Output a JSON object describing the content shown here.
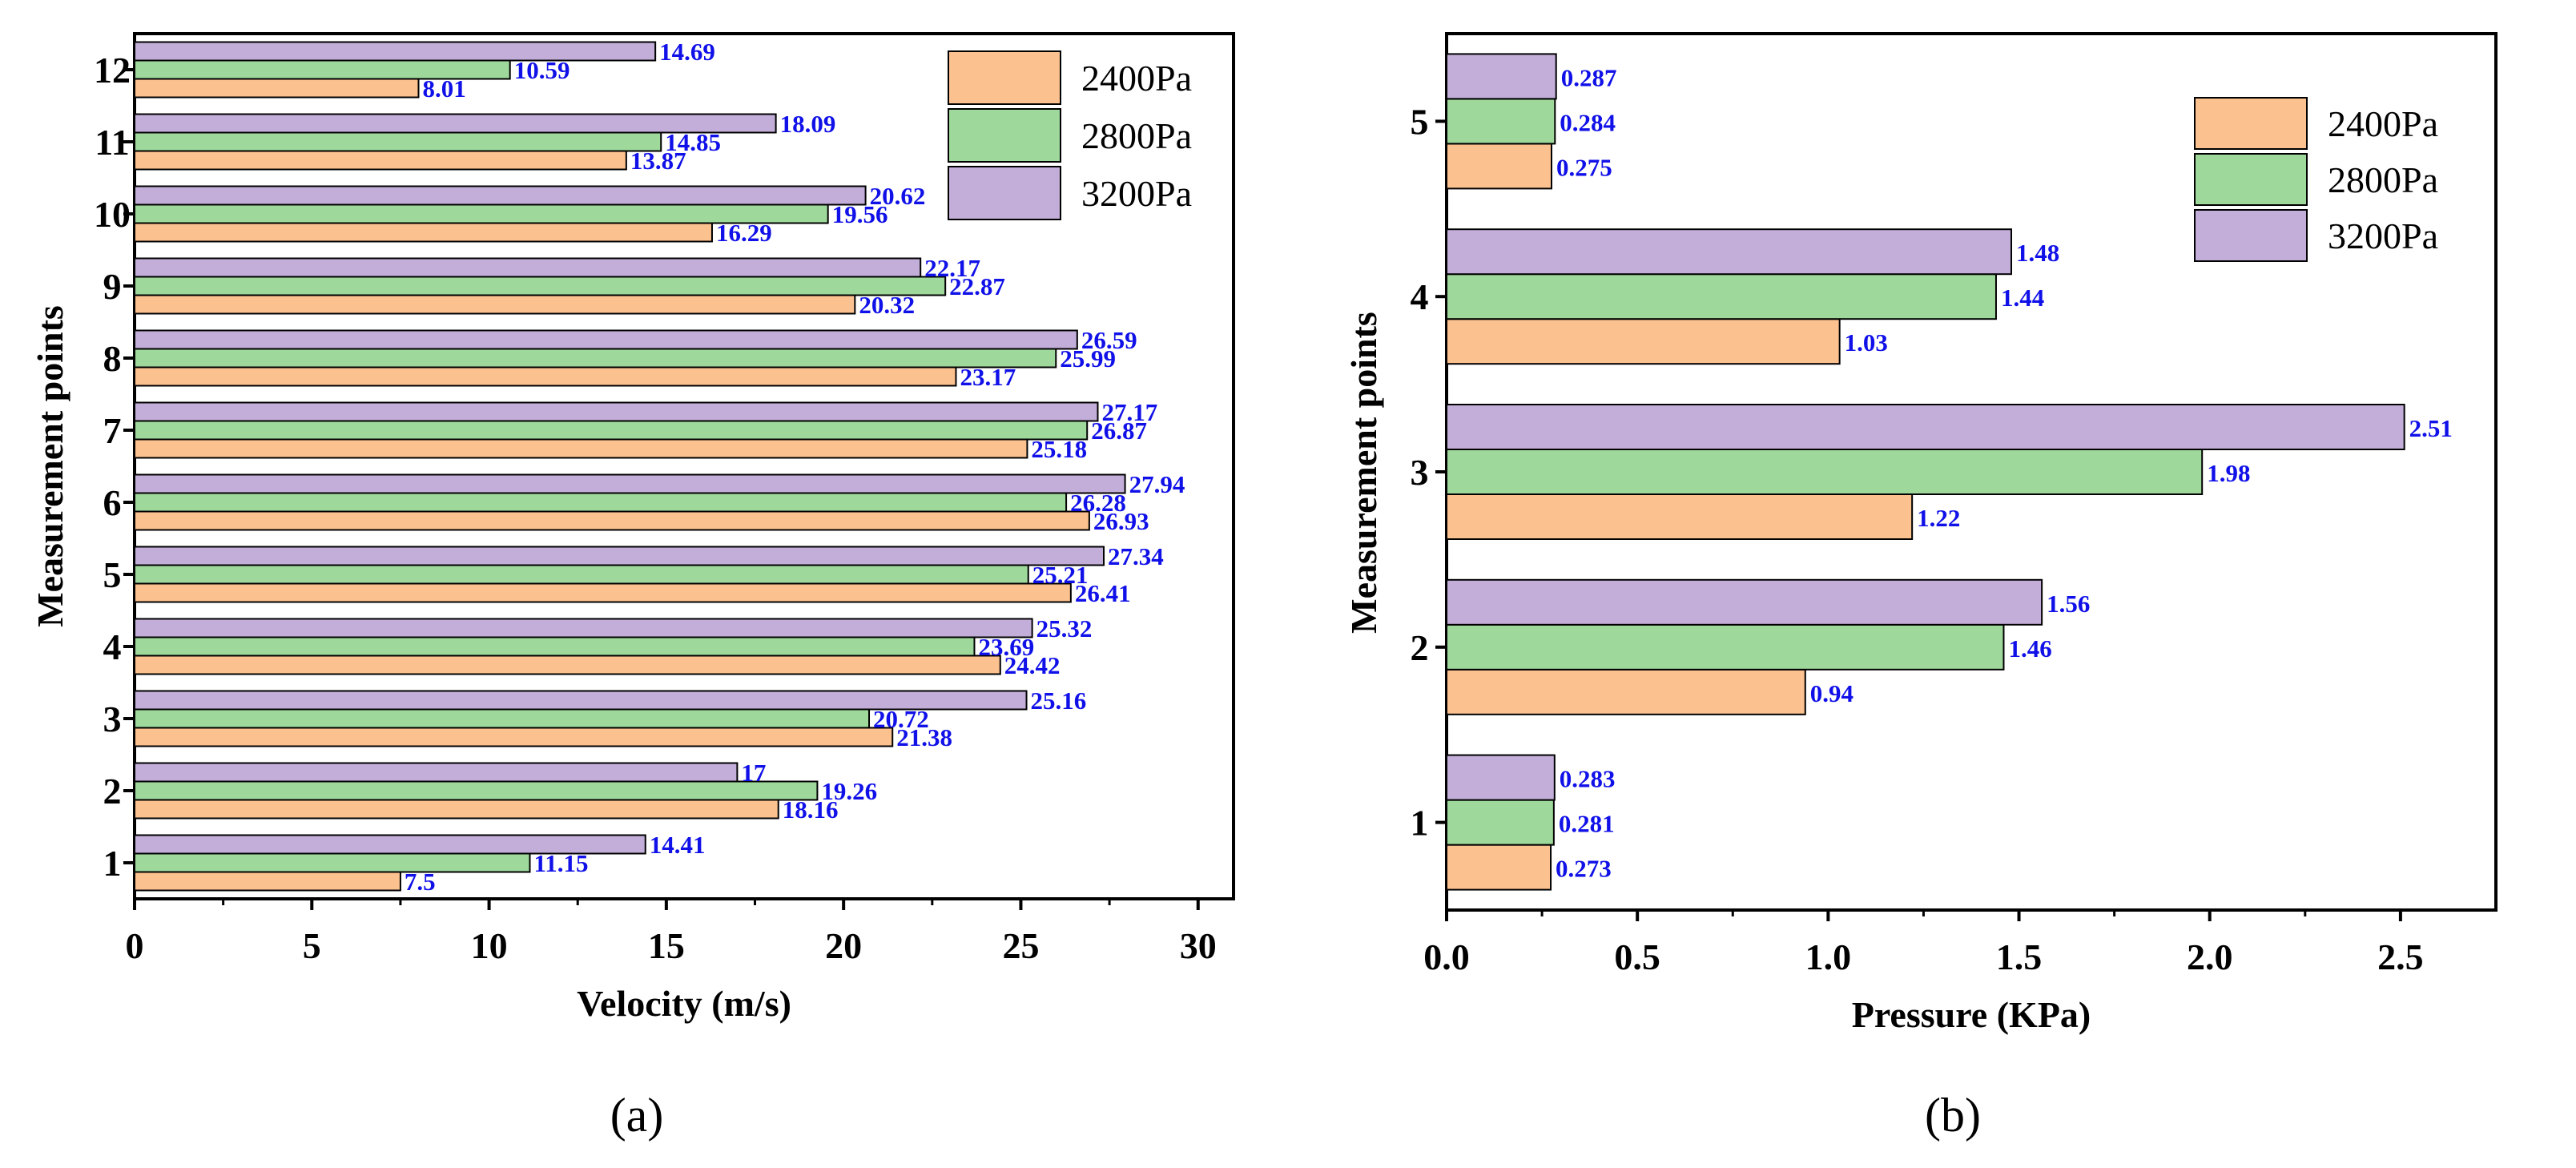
{
  "chart_data": [
    {
      "type": "bar",
      "orientation": "horizontal",
      "panel_label": "(a)",
      "xlabel": "Velocity (m/s)",
      "ylabel": "Measurement points",
      "xlim": [
        0,
        31
      ],
      "xticks": [
        "0",
        "5",
        "10",
        "15",
        "20",
        "25",
        "30"
      ],
      "categories": [
        "1",
        "2",
        "3",
        "4",
        "5",
        "6",
        "7",
        "8",
        "9",
        "10",
        "11",
        "12"
      ],
      "legend_position": "top-right",
      "series": [
        {
          "name": "2400Pa",
          "color": "#fbc18f",
          "values": [
            7.5,
            18.16,
            21.38,
            24.42,
            26.41,
            26.93,
            25.18,
            23.17,
            20.32,
            16.29,
            13.87,
            8.01
          ],
          "labels": [
            "7.5",
            "18.16",
            "21.38",
            "24.42",
            "26.41",
            "26.93",
            "25.18",
            "23.17",
            "20.32",
            "16.29",
            "13.87",
            "8.01"
          ]
        },
        {
          "name": "2800Pa",
          "color": "#9ed99b",
          "values": [
            11.15,
            19.26,
            20.72,
            23.69,
            25.21,
            26.28,
            26.87,
            25.99,
            22.87,
            19.56,
            14.85,
            10.59
          ],
          "labels": [
            "11.15",
            "19.26",
            "20.72",
            "23.69",
            "25.21",
            "26.28",
            "26.87",
            "25.99",
            "22.87",
            "19.56",
            "14.85",
            "10.59"
          ]
        },
        {
          "name": "3200Pa",
          "color": "#c2aed8",
          "values": [
            14.41,
            17,
            25.16,
            25.32,
            27.34,
            27.94,
            27.17,
            26.59,
            22.17,
            20.62,
            18.09,
            14.69
          ],
          "labels": [
            "14.41",
            "17",
            "25.16",
            "25.32",
            "27.34",
            "27.94",
            "27.17",
            "26.59",
            "22.17",
            "20.62",
            "18.09",
            "14.69"
          ]
        }
      ]
    },
    {
      "type": "bar",
      "orientation": "horizontal",
      "panel_label": "(b)",
      "xlabel": "Pressure (KPa)",
      "ylabel": "Measurement points",
      "xlim": [
        0,
        2.75
      ],
      "xticks": [
        "0.0",
        "0.5",
        "1.0",
        "1.5",
        "2.0",
        "2.5"
      ],
      "categories": [
        "1",
        "2",
        "3",
        "4",
        "5"
      ],
      "legend_position": "top-right",
      "series": [
        {
          "name": "2400Pa",
          "color": "#fbc18f",
          "values": [
            0.273,
            0.94,
            1.22,
            1.03,
            0.275
          ],
          "labels": [
            "0.273",
            "0.94",
            "1.22",
            "1.03",
            "0.275"
          ]
        },
        {
          "name": "2800Pa",
          "color": "#9ed99b",
          "values": [
            0.281,
            1.46,
            1.98,
            1.44,
            0.284
          ],
          "labels": [
            "0.281",
            "1.46",
            "1.98",
            "1.44",
            "0.284"
          ]
        },
        {
          "name": "3200Pa",
          "color": "#c2aed8",
          "values": [
            0.283,
            1.56,
            2.51,
            1.48,
            0.287
          ],
          "labels": [
            "0.283",
            "1.56",
            "2.51",
            "1.48",
            "0.287"
          ]
        }
      ]
    }
  ]
}
